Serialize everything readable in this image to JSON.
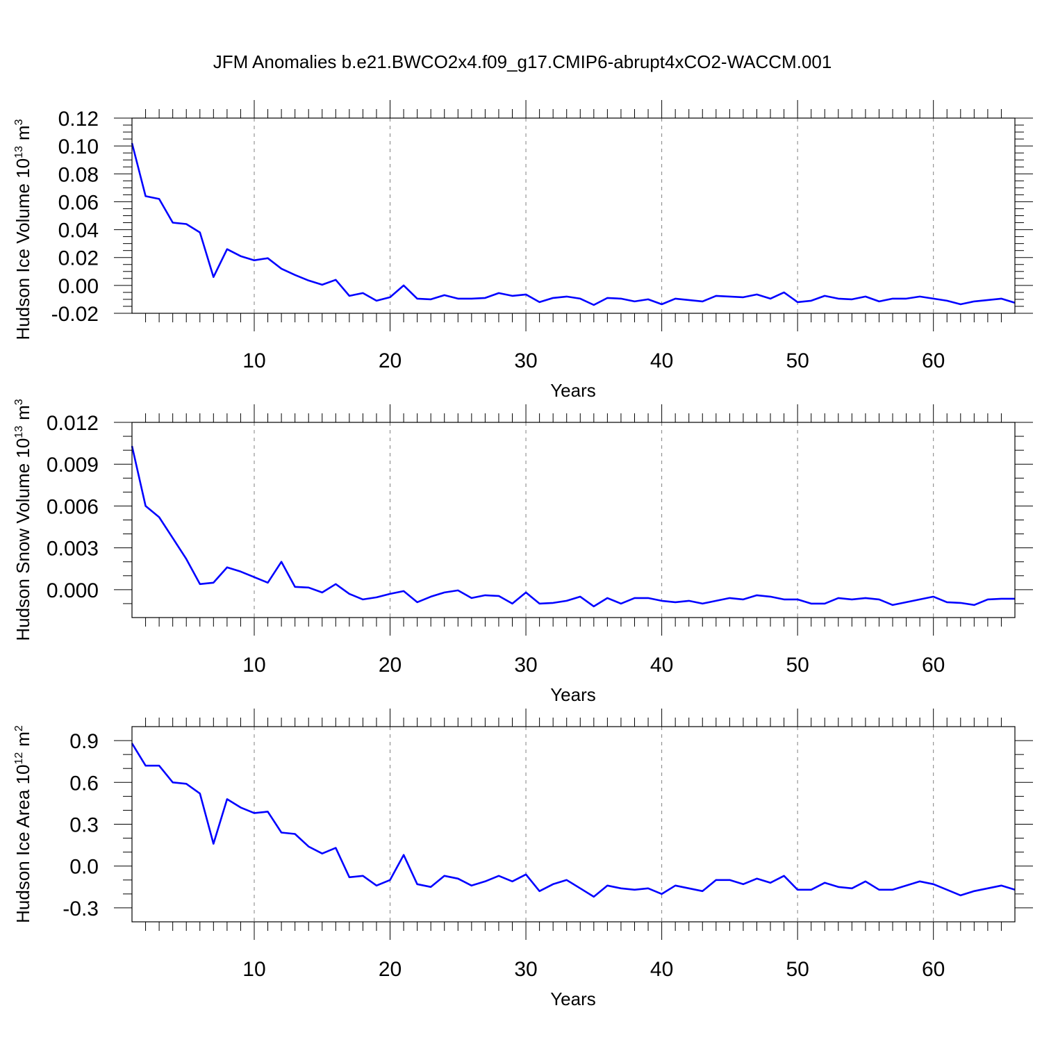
{
  "title": "JFM Anomalies b.e21.BWCO2x4.f09_g17.CMIP6-abrupt4xCO2-WACCM.001",
  "colors": {
    "line": "#0000ff",
    "axis": "#000000",
    "grid": "#808080"
  },
  "chart_data": [
    {
      "type": "line",
      "ylabel": "Hudson Ice Volume 10",
      "ylabel_sup": "13",
      "ylabel_unit": "m",
      "ylabel_unit_sup": "3",
      "xlabel": "Years",
      "xlim": [
        1,
        66
      ],
      "ylim": [
        -0.02,
        0.12
      ],
      "xticks": [
        10,
        20,
        30,
        40,
        50,
        60
      ],
      "yticks": [
        -0.02,
        0.0,
        0.02,
        0.04,
        0.06,
        0.08,
        0.1,
        0.12
      ],
      "ytick_labels": [
        "-0.02",
        "0.00",
        "0.02",
        "0.04",
        "0.06",
        "0.08",
        "0.10",
        "0.12"
      ],
      "y_minor_step": 0.005,
      "x": [
        1,
        2,
        3,
        4,
        5,
        6,
        7,
        8,
        9,
        10,
        11,
        12,
        13,
        14,
        15,
        16,
        17,
        18,
        19,
        20,
        21,
        22,
        23,
        24,
        25,
        26,
        27,
        28,
        29,
        30,
        31,
        32,
        33,
        34,
        35,
        36,
        37,
        38,
        39,
        40,
        41,
        42,
        43,
        44,
        45,
        46,
        47,
        48,
        49,
        50,
        51,
        52,
        53,
        54,
        55,
        56,
        57,
        58,
        59,
        60,
        61,
        62,
        63,
        64,
        65,
        66
      ],
      "values": [
        0.102,
        0.064,
        0.062,
        0.045,
        0.044,
        0.038,
        0.006,
        0.026,
        0.021,
        0.018,
        0.0195,
        0.012,
        0.0075,
        0.0035,
        0.0005,
        0.004,
        -0.0075,
        -0.0055,
        -0.011,
        -0.0085,
        0.0,
        -0.0095,
        -0.01,
        -0.007,
        -0.0095,
        -0.0095,
        -0.009,
        -0.0055,
        -0.0075,
        -0.0065,
        -0.012,
        -0.009,
        -0.008,
        -0.0095,
        -0.014,
        -0.009,
        -0.0095,
        -0.0115,
        -0.01,
        -0.0135,
        -0.0095,
        -0.0105,
        -0.0115,
        -0.0075,
        -0.008,
        -0.0085,
        -0.0065,
        -0.0095,
        -0.005,
        -0.012,
        -0.011,
        -0.0075,
        -0.0095,
        -0.01,
        -0.008,
        -0.0115,
        -0.0095,
        -0.0095,
        -0.008,
        -0.0095,
        -0.011,
        -0.0135,
        -0.0115,
        -0.0105,
        -0.0095,
        -0.0125
      ]
    },
    {
      "type": "line",
      "ylabel": "Hudson Snow Volume 10",
      "ylabel_sup": "13",
      "ylabel_unit": "m",
      "ylabel_unit_sup": "3",
      "xlabel": "Years",
      "xlim": [
        1,
        66
      ],
      "ylim": [
        -0.002,
        0.012
      ],
      "xticks": [
        10,
        20,
        30,
        40,
        50,
        60
      ],
      "yticks": [
        0.0,
        0.003,
        0.006,
        0.009,
        0.012
      ],
      "ytick_labels": [
        "0.000",
        "0.003",
        "0.006",
        "0.009",
        "0.012"
      ],
      "y_minor_step": 0.001,
      "x": [
        1,
        2,
        3,
        4,
        5,
        6,
        7,
        8,
        9,
        10,
        11,
        12,
        13,
        14,
        15,
        16,
        17,
        18,
        19,
        20,
        21,
        22,
        23,
        24,
        25,
        26,
        27,
        28,
        29,
        30,
        31,
        32,
        33,
        34,
        35,
        36,
        37,
        38,
        39,
        40,
        41,
        42,
        43,
        44,
        45,
        46,
        47,
        48,
        49,
        50,
        51,
        52,
        53,
        54,
        55,
        56,
        57,
        58,
        59,
        60,
        61,
        62,
        63,
        64,
        65,
        66
      ],
      "values": [
        0.0103,
        0.006,
        0.0052,
        0.0037,
        0.0022,
        0.0004,
        0.0005,
        0.0016,
        0.0013,
        0.0009,
        0.0005,
        0.002,
        0.0002,
        0.00015,
        -0.0002,
        0.0004,
        -0.0003,
        -0.0007,
        -0.00055,
        -0.0003,
        -0.0001,
        -0.0009,
        -0.0005,
        -0.0002,
        -5e-05,
        -0.0006,
        -0.0004,
        -0.00045,
        -0.001,
        -0.0002,
        -0.001,
        -0.00095,
        -0.0008,
        -0.0005,
        -0.0012,
        -0.0006,
        -0.001,
        -0.0006,
        -0.0006,
        -0.0008,
        -0.0009,
        -0.0008,
        -0.001,
        -0.0008,
        -0.0006,
        -0.0007,
        -0.0004,
        -0.0005,
        -0.0007,
        -0.0007,
        -0.001,
        -0.001,
        -0.0006,
        -0.0007,
        -0.0006,
        -0.0007,
        -0.0011,
        -0.0009,
        -0.0007,
        -0.0005,
        -0.0009,
        -0.00095,
        -0.0011,
        -0.0007,
        -0.00065,
        -0.00065
      ]
    },
    {
      "type": "line",
      "ylabel": "Hudson Ice Area 10",
      "ylabel_sup": "12",
      "ylabel_unit": "m",
      "ylabel_unit_sup": "2",
      "xlabel": "Years",
      "xlim": [
        1,
        66
      ],
      "ylim": [
        -0.4,
        1.0
      ],
      "xticks": [
        10,
        20,
        30,
        40,
        50,
        60
      ],
      "yticks": [
        -0.3,
        0.0,
        0.3,
        0.6,
        0.9
      ],
      "ytick_labels": [
        "-0.3",
        "0.0",
        "0.3",
        "0.6",
        "0.9"
      ],
      "y_minor_step": 0.1,
      "x": [
        1,
        2,
        3,
        4,
        5,
        6,
        7,
        8,
        9,
        10,
        11,
        12,
        13,
        14,
        15,
        16,
        17,
        18,
        19,
        20,
        21,
        22,
        23,
        24,
        25,
        26,
        27,
        28,
        29,
        30,
        31,
        32,
        33,
        34,
        35,
        36,
        37,
        38,
        39,
        40,
        41,
        42,
        43,
        44,
        45,
        46,
        47,
        48,
        49,
        50,
        51,
        52,
        53,
        54,
        55,
        56,
        57,
        58,
        59,
        60,
        61,
        62,
        63,
        64,
        65,
        66
      ],
      "values": [
        0.88,
        0.72,
        0.72,
        0.6,
        0.59,
        0.52,
        0.16,
        0.48,
        0.42,
        0.38,
        0.39,
        0.24,
        0.23,
        0.14,
        0.09,
        0.13,
        -0.08,
        -0.07,
        -0.14,
        -0.1,
        0.08,
        -0.13,
        -0.15,
        -0.07,
        -0.09,
        -0.14,
        -0.11,
        -0.07,
        -0.11,
        -0.06,
        -0.18,
        -0.13,
        -0.1,
        -0.16,
        -0.22,
        -0.14,
        -0.16,
        -0.17,
        -0.16,
        -0.2,
        -0.14,
        -0.16,
        -0.18,
        -0.1,
        -0.1,
        -0.13,
        -0.09,
        -0.12,
        -0.07,
        -0.17,
        -0.17,
        -0.12,
        -0.15,
        -0.16,
        -0.11,
        -0.17,
        -0.17,
        -0.14,
        -0.11,
        -0.13,
        -0.17,
        -0.21,
        -0.18,
        -0.16,
        -0.14,
        -0.17
      ]
    }
  ]
}
